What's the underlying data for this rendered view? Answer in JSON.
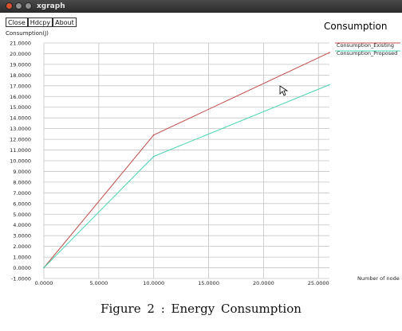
{
  "window": {
    "title": "xgraph",
    "buttons": [
      "Close",
      "Hdcpy",
      "About"
    ]
  },
  "caption": "Figure 2 :  Energy  Consumption",
  "chart_data": {
    "type": "line",
    "title": "Consumption",
    "ylabel": "Consumption(J)",
    "xlabel": "Number of node",
    "xlim": [
      0,
      26
    ],
    "ylim": [
      -1,
      21
    ],
    "x_ticks": [
      "0.0000",
      "5.0000",
      "10.0000",
      "15.0000",
      "20.0000",
      "25.0000"
    ],
    "x_tick_values": [
      0,
      5,
      10,
      15,
      20,
      25
    ],
    "y_ticks": [
      "-1.0000",
      "0.0000",
      "1.0000",
      "2.0000",
      "3.0000",
      "4.0000",
      "5.0000",
      "6.0000",
      "7.0000",
      "8.0000",
      "9.0000",
      "10.0000",
      "11.0000",
      "12.0000",
      "13.0000",
      "14.0000",
      "15.0000",
      "16.0000",
      "17.0000",
      "18.0000",
      "19.0000",
      "20.0000",
      "21.0000"
    ],
    "y_tick_values": [
      -1,
      0,
      1,
      2,
      3,
      4,
      5,
      6,
      7,
      8,
      9,
      10,
      11,
      12,
      13,
      14,
      15,
      16,
      17,
      18,
      19,
      20,
      21
    ],
    "grid": true,
    "legend_position": "top-right",
    "series": [
      {
        "name": "Consumption_Existing",
        "color": "#c0504d",
        "x": [
          0,
          10,
          26
        ],
        "y": [
          0,
          12.4,
          20.1
        ]
      },
      {
        "name": "Consumption_Proposed",
        "color": "#4bd4b4",
        "x": [
          0,
          10,
          26
        ],
        "y": [
          0,
          10.4,
          17.1
        ]
      }
    ]
  }
}
